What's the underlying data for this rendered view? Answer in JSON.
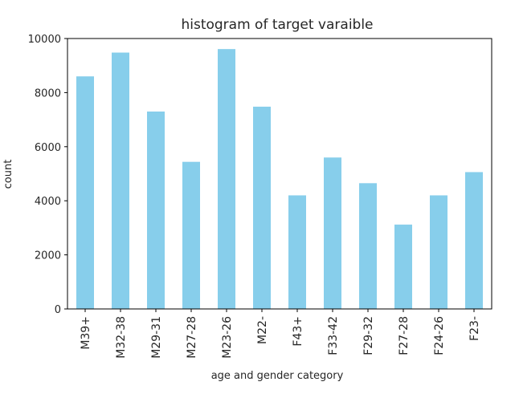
{
  "chart_data": {
    "type": "bar",
    "title": "histogram of target varaible",
    "xlabel": "age and gender category",
    "ylabel": "count",
    "categories": [
      "M39+",
      "M32-38",
      "M29-31",
      "M27-28",
      "M23-26",
      "M22-",
      "F43+",
      "F33-42",
      "F29-32",
      "F27-28",
      "F24-26",
      "F23-"
    ],
    "values": [
      8600,
      9480,
      7300,
      5440,
      9610,
      7480,
      4200,
      5600,
      4650,
      3120,
      4200,
      5060
    ],
    "ylim": [
      0,
      10000
    ],
    "yticks": [
      0,
      2000,
      4000,
      6000,
      8000,
      10000
    ],
    "grid": false,
    "bar_color": "#87ceeb"
  }
}
